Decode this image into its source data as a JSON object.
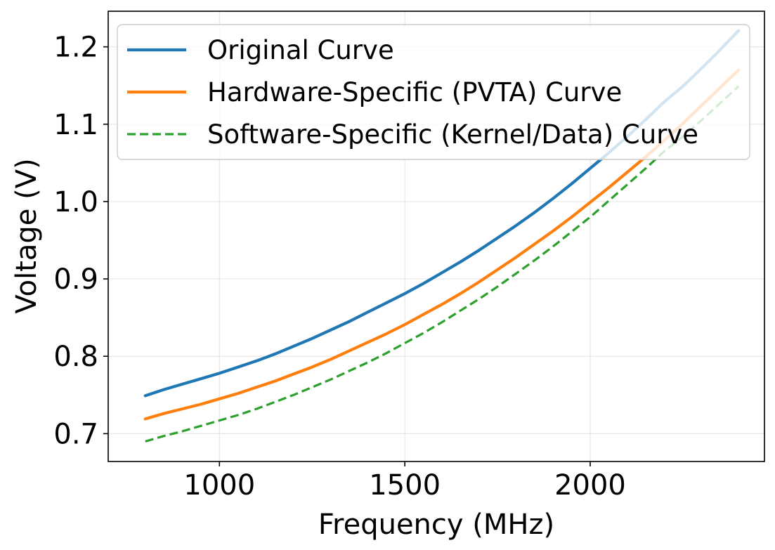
{
  "chart_data": {
    "type": "line",
    "xlabel": "Frequency (MHz)",
    "ylabel": "Voltage (V)",
    "xlim": [
      700,
      2470
    ],
    "ylim": [
      0.664,
      1.246
    ],
    "xticks": [
      1000,
      1500,
      2000
    ],
    "yticks": [
      0.7,
      0.8,
      0.9,
      1.0,
      1.1,
      1.2
    ],
    "xtick_labels": [
      "1000",
      "1500",
      "2000"
    ],
    "ytick_labels": [
      "0.7",
      "0.8",
      "0.9",
      "1.0",
      "1.1",
      "1.2"
    ],
    "grid": true,
    "legend_position": "upper-left",
    "x": [
      800,
      850,
      900,
      950,
      1000,
      1050,
      1100,
      1150,
      1200,
      1250,
      1300,
      1350,
      1400,
      1450,
      1500,
      1550,
      1600,
      1650,
      1700,
      1750,
      1800,
      1850,
      1900,
      1950,
      2000,
      2050,
      2100,
      2150,
      2200,
      2250,
      2300,
      2350,
      2400
    ],
    "series": [
      {
        "name": "Original Curve",
        "color": "#1f77b4",
        "style": "solid",
        "values": [
          0.749,
          0.757,
          0.764,
          0.771,
          0.778,
          0.786,
          0.794,
          0.803,
          0.813,
          0.823,
          0.834,
          0.845,
          0.857,
          0.869,
          0.881,
          0.894,
          0.908,
          0.922,
          0.937,
          0.953,
          0.969,
          0.986,
          1.004,
          1.023,
          1.043,
          1.063,
          1.084,
          1.106,
          1.129,
          1.149,
          1.172,
          1.196,
          1.221
        ]
      },
      {
        "name": "Hardware-Specific (PVTA) Curve",
        "color": "#ff7f0e",
        "style": "solid",
        "values": [
          0.719,
          0.726,
          0.732,
          0.738,
          0.745,
          0.752,
          0.76,
          0.768,
          0.777,
          0.786,
          0.796,
          0.807,
          0.818,
          0.829,
          0.841,
          0.854,
          0.867,
          0.881,
          0.896,
          0.912,
          0.928,
          0.945,
          0.962,
          0.98,
          0.999,
          1.018,
          1.038,
          1.058,
          1.079,
          1.101,
          1.124,
          1.147,
          1.17
        ]
      },
      {
        "name": "Software-Specific (Kernel/Data) Curve",
        "color": "#2ca02c",
        "style": "dashed",
        "values": [
          0.69,
          0.697,
          0.703,
          0.71,
          0.717,
          0.724,
          0.732,
          0.741,
          0.75,
          0.76,
          0.77,
          0.781,
          0.792,
          0.804,
          0.817,
          0.83,
          0.844,
          0.859,
          0.874,
          0.89,
          0.907,
          0.924,
          0.942,
          0.961,
          0.98,
          1.001,
          1.022,
          1.043,
          1.065,
          1.084,
          1.105,
          1.127,
          1.149
        ]
      }
    ]
  }
}
